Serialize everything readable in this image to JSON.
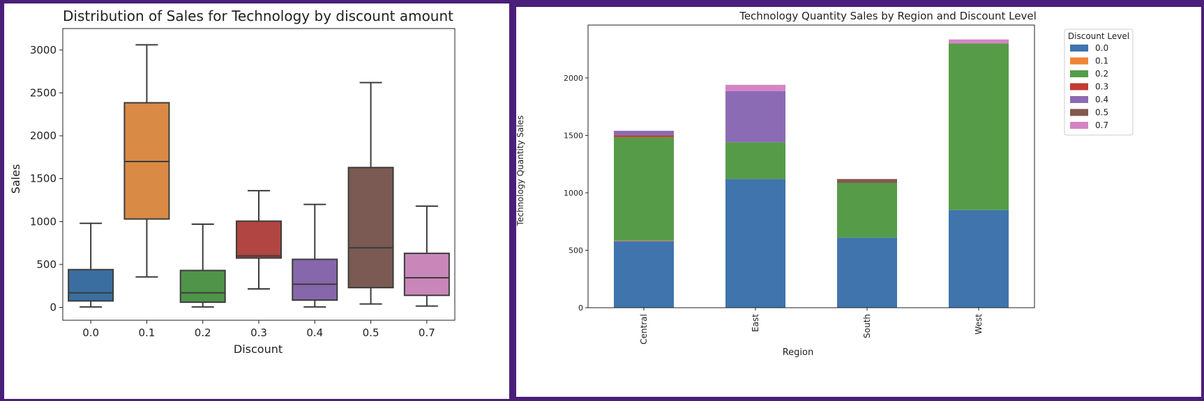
{
  "chart_data": [
    {
      "type": "box",
      "title": "Distribution of Sales for Technology by discount amount",
      "xlabel": "Discount",
      "ylabel": "Sales",
      "ylim": [
        -150,
        3250
      ],
      "yticks": [
        0,
        500,
        1000,
        1500,
        2000,
        2500,
        3000
      ],
      "categories": [
        "0.0",
        "0.1",
        "0.2",
        "0.3",
        "0.4",
        "0.5",
        "0.7"
      ],
      "boxes": [
        {
          "category": "0.0",
          "color": "#3a6ea0",
          "whisker_low": 5,
          "q1": 75,
          "median": 170,
          "q3": 440,
          "whisker_high": 980
        },
        {
          "category": "0.1",
          "color": "#d98a45",
          "whisker_low": 355,
          "q1": 1030,
          "median": 1700,
          "q3": 2385,
          "whisker_high": 3060
        },
        {
          "category": "0.2",
          "color": "#4f9449",
          "whisker_low": 5,
          "q1": 60,
          "median": 170,
          "q3": 430,
          "whisker_high": 970
        },
        {
          "category": "0.3",
          "color": "#b14541",
          "whisker_low": 215,
          "q1": 575,
          "median": 600,
          "q3": 1005,
          "whisker_high": 1360
        },
        {
          "category": "0.4",
          "color": "#8767ab",
          "whisker_low": 5,
          "q1": 85,
          "median": 270,
          "q3": 560,
          "whisker_high": 1200
        },
        {
          "category": "0.5",
          "color": "#7a5a52",
          "whisker_low": 40,
          "q1": 230,
          "median": 695,
          "q3": 1630,
          "whisker_high": 2620
        },
        {
          "category": "0.7",
          "color": "#c987b9",
          "whisker_low": 15,
          "q1": 140,
          "median": 345,
          "q3": 630,
          "whisker_high": 1180
        }
      ]
    },
    {
      "type": "stacked-bar",
      "title": "Technology Quantity Sales by Region and Discount Level",
      "xlabel": "Region",
      "ylabel": "Technology Quantity Sales",
      "ylim": [
        0,
        2460
      ],
      "yticks": [
        0,
        500,
        1000,
        1500,
        2000
      ],
      "categories": [
        "Central",
        "East",
        "South",
        "West"
      ],
      "legend_title": "Discount Level",
      "legend_position": "upper right (outside)",
      "series": [
        {
          "name": "0.0",
          "color": "#3f74ad",
          "values": [
            580,
            1120,
            610,
            850
          ]
        },
        {
          "name": "0.1",
          "color": "#ef8636",
          "values": [
            5,
            0,
            0,
            0
          ]
        },
        {
          "name": "0.2",
          "color": "#569c48",
          "values": [
            900,
            320,
            475,
            1450
          ]
        },
        {
          "name": "0.3",
          "color": "#c33b33",
          "values": [
            15,
            0,
            0,
            0
          ]
        },
        {
          "name": "0.4",
          "color": "#8c6bb5",
          "values": [
            40,
            445,
            0,
            0
          ]
        },
        {
          "name": "0.5",
          "color": "#83594f",
          "values": [
            0,
            0,
            35,
            0
          ]
        },
        {
          "name": "0.7",
          "color": "#d584c4",
          "values": [
            0,
            55,
            0,
            35
          ]
        }
      ]
    }
  ]
}
